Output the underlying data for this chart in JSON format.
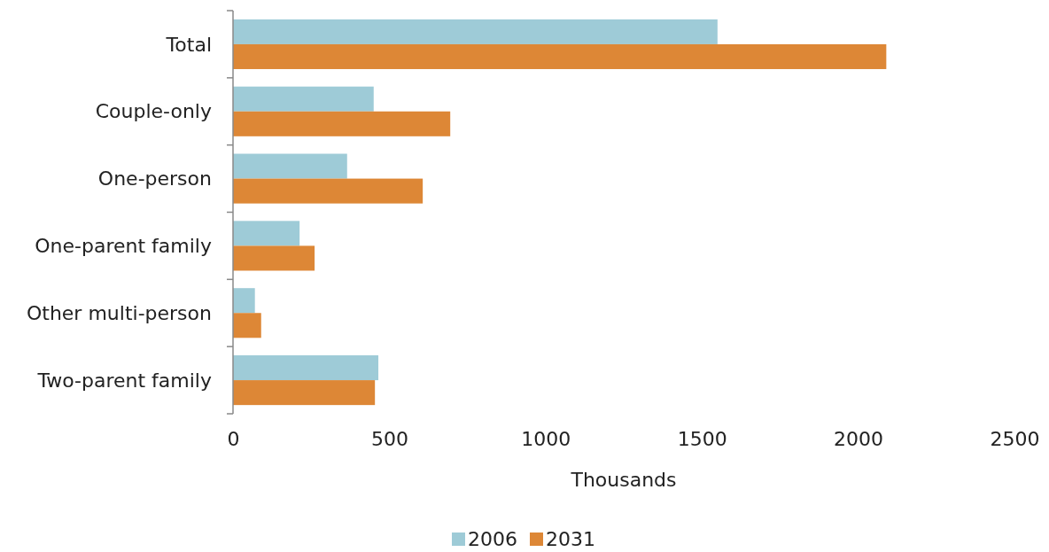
{
  "chart_data": {
    "type": "bar",
    "orientation": "horizontal",
    "xlabel": "Thousands",
    "categories": [
      "Total",
      "Couple-only",
      "One-person",
      "One-parent family",
      "Other multi-person",
      "Two-parent family"
    ],
    "series": [
      {
        "name": "2006",
        "color": "#9ecbd7",
        "values": [
          1550,
          450,
          365,
          213,
          70,
          465
        ]
      },
      {
        "name": "2031",
        "color": "#dd8736",
        "values": [
          2090,
          695,
          607,
          261,
          90,
          454
        ]
      }
    ],
    "xlim": [
      0,
      2500
    ],
    "xticks": [
      0,
      500,
      1000,
      1500,
      2000,
      2500
    ],
    "grid": false,
    "legend": "bottom"
  }
}
